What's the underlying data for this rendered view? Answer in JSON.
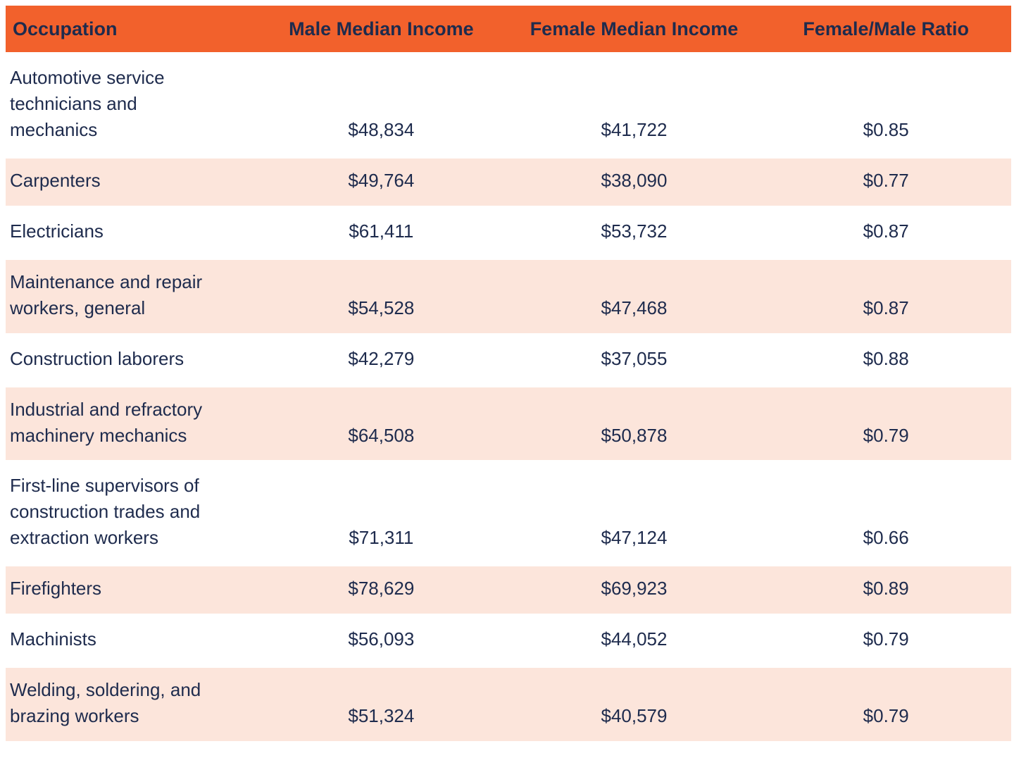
{
  "colors": {
    "header_bg": "#F2612C",
    "row_bg": "#FFFFFF",
    "row_alt_bg": "#FCE5DB",
    "text": "#1E2B4D"
  },
  "table": {
    "columns": [
      {
        "label": "Occupation"
      },
      {
        "label": "Male Median Income"
      },
      {
        "label": "Female Median Income"
      },
      {
        "label": "Female/Male Ratio"
      }
    ],
    "rows": [
      {
        "occupation": "Automotive service\ntechnicians and\nmechanics",
        "male": "$48,834",
        "female": "$41,722",
        "ratio": "$0.85"
      },
      {
        "occupation": "Carpenters",
        "male": "$49,764",
        "female": "$38,090",
        "ratio": "$0.77"
      },
      {
        "occupation": "Electricians",
        "male": "$61,411",
        "female": "$53,732",
        "ratio": "$0.87"
      },
      {
        "occupation": "Maintenance and repair\nworkers, general",
        "male": "$54,528",
        "female": "$47,468",
        "ratio": "$0.87"
      },
      {
        "occupation": "Construction laborers",
        "male": "$42,279",
        "female": "$37,055",
        "ratio": "$0.88"
      },
      {
        "occupation": "Industrial and refractory\nmachinery mechanics",
        "male": "$64,508",
        "female": "$50,878",
        "ratio": "$0.79"
      },
      {
        "occupation": "First-line supervisors of\nconstruction trades and\nextraction workers",
        "male": "$71,311",
        "female": "$47,124",
        "ratio": "$0.66"
      },
      {
        "occupation": "Firefighters",
        "male": "$78,629",
        "female": "$69,923",
        "ratio": "$0.89"
      },
      {
        "occupation": "Machinists",
        "male": "$56,093",
        "female": "$44,052",
        "ratio": "$0.79"
      },
      {
        "occupation": "Welding, soldering, and\nbrazing workers",
        "male": "$51,324",
        "female": "$40,579",
        "ratio": "$0.79"
      }
    ]
  },
  "chart_data": {
    "type": "table",
    "title": "",
    "categories": [
      "Automotive service technicians and mechanics",
      "Carpenters",
      "Electricians",
      "Maintenance and repair workers, general",
      "Construction laborers",
      "Industrial and refractory machinery mechanics",
      "First-line supervisors of construction trades and extraction workers",
      "Firefighters",
      "Machinists",
      "Welding, soldering, and brazing workers"
    ],
    "series": [
      {
        "name": "Male Median Income",
        "values": [
          48834,
          49764,
          61411,
          54528,
          42279,
          64508,
          71311,
          78629,
          56093,
          51324
        ]
      },
      {
        "name": "Female Median Income",
        "values": [
          41722,
          38090,
          53732,
          47468,
          37055,
          50878,
          47124,
          69923,
          44052,
          40579
        ]
      },
      {
        "name": "Female/Male Ratio",
        "values": [
          0.85,
          0.77,
          0.87,
          0.87,
          0.88,
          0.79,
          0.66,
          0.89,
          0.79,
          0.79
        ]
      }
    ]
  }
}
